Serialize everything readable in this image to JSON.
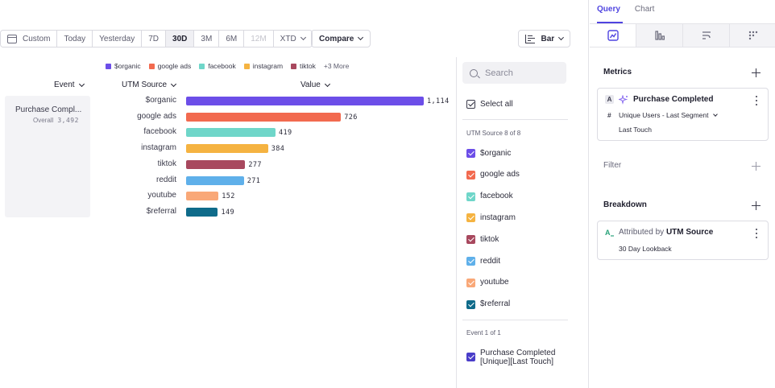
{
  "toolbar": {
    "custom_label": "Custom",
    "ranges": [
      "Today",
      "Yesterday",
      "7D",
      "30D",
      "3M",
      "6M",
      "12M",
      "XTD"
    ],
    "active_range": "30D",
    "disabled_range": "12M",
    "compare_label": "Compare",
    "chart_type_label": "Bar"
  },
  "legend": {
    "items": [
      {
        "name": "$organic",
        "color": "#6c4ee8"
      },
      {
        "name": "google ads",
        "color": "#f26a4f"
      },
      {
        "name": "facebook",
        "color": "#6fd6c9"
      },
      {
        "name": "instagram",
        "color": "#f5b341"
      },
      {
        "name": "tiktok",
        "color": "#a8485e"
      }
    ],
    "more_label": "+3 More"
  },
  "columns": {
    "event": "Event",
    "utm_source": "UTM Source",
    "value": "Value"
  },
  "event_card": {
    "name": "Purchase Compl...",
    "overall_label": "Overall",
    "overall_value": "3,492"
  },
  "chart_data": {
    "type": "bar",
    "orientation": "horizontal",
    "categories": [
      "$organic",
      "google ads",
      "facebook",
      "instagram",
      "tiktok",
      "reddit",
      "youtube",
      "$referral"
    ],
    "values": [
      1114,
      726,
      419,
      384,
      277,
      271,
      152,
      149
    ],
    "value_labels": [
      "1,114",
      "726",
      "419",
      "384",
      "277",
      "271",
      "152",
      "149"
    ],
    "colors": [
      "#6c4ee8",
      "#f26a4f",
      "#6fd6c9",
      "#f5b341",
      "#a8485e",
      "#5fb0ea",
      "#f9a878",
      "#0f6b8a"
    ],
    "xlim": [
      0,
      1114
    ]
  },
  "filter_panel": {
    "search_placeholder": "Search",
    "select_all_label": "Select all",
    "utm_section_label": "UTM Source 8 of 8",
    "utm_items": [
      {
        "label": "$organic",
        "color": "#6c4ee8"
      },
      {
        "label": "google ads",
        "color": "#f26a4f"
      },
      {
        "label": "facebook",
        "color": "#6fd6c9"
      },
      {
        "label": "instagram",
        "color": "#f5b341"
      },
      {
        "label": "tiktok",
        "color": "#a8485e"
      },
      {
        "label": "reddit",
        "color": "#5fb0ea"
      },
      {
        "label": "youtube",
        "color": "#f9a878"
      },
      {
        "label": "$referral",
        "color": "#0f6b8a"
      }
    ],
    "event_section_label": "Event 1 of 1",
    "event_item_line1": "Purchase Completed",
    "event_item_line2": "[Unique][Last Touch]",
    "event_item_color": "#4a3dc9"
  },
  "right_panel": {
    "tabs": [
      "Query",
      "Chart"
    ],
    "active_tab": "Query",
    "metrics_title": "Metrics",
    "metric": {
      "badge": "A",
      "name": "Purchase Completed",
      "hash": "#",
      "measure": "Unique Users - Last Segment",
      "attribution": "Last Touch"
    },
    "filter_title": "Filter",
    "breakdown_title": "Breakdown",
    "breakdown": {
      "prefix": "Attributed by",
      "property": "UTM Source",
      "lookback": "30 Day Lookback"
    }
  }
}
